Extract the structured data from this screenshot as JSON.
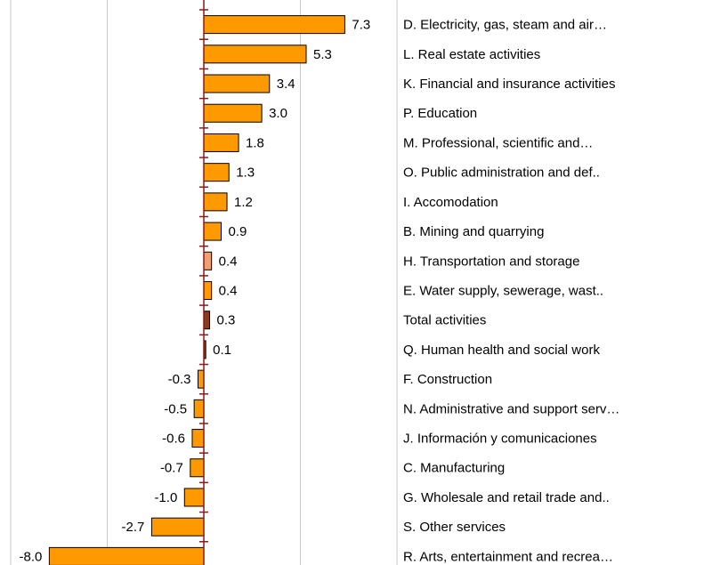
{
  "chart_data": {
    "type": "bar",
    "orientation": "horizontal",
    "categories": [
      "D. Electricity, gas, steam and air…",
      "L. Real estate activities",
      "K. Financial and insurance activities",
      "P. Education",
      "M. Professional, scientific and…",
      "O. Public administration and def..",
      "I. Accomodation",
      "B. Mining and quarrying",
      "H. Transportation and storage",
      "E. Water supply, sewerage, wast..",
      "Total activities",
      "Q. Human health and social work",
      "F. Construction",
      "N. Administrative and support serv…",
      "J. Información y comunicaciones",
      "C. Manufacturing",
      "G. Wholesale and retail trade and..",
      "S. Other services",
      "R. Arts, entertainment and recrea…"
    ],
    "values": [
      7.3,
      5.3,
      3.4,
      3.0,
      1.8,
      1.3,
      1.2,
      0.9,
      0.4,
      0.4,
      0.3,
      0.1,
      -0.3,
      -0.5,
      -0.6,
      -0.7,
      -1.0,
      -2.7,
      -8.0
    ],
    "value_labels": [
      "7.3",
      "5.3",
      "3.4",
      "3.0",
      "1.8",
      "1.3",
      "1.2",
      "0.9",
      "0.4",
      "0.4",
      "0.3",
      "0.1",
      "-0.3",
      "-0.5",
      "-0.6",
      "-0.7",
      "-1.0",
      "-2.7",
      "-8.0"
    ],
    "colors": [
      "#FF9900",
      "#FF9900",
      "#FF9900",
      "#FF9900",
      "#FF9900",
      "#FF9900",
      "#FF9900",
      "#FF9900",
      "#F0A070",
      "#FF9900",
      "#8B3A1A",
      "#8B3A1A",
      "#FF9900",
      "#FF9900",
      "#FF9900",
      "#FF9900",
      "#FF9900",
      "#FF9900",
      "#FF9900"
    ],
    "axis_color": "#8B1A1A",
    "xlim": [
      -10,
      10
    ],
    "xticks": [
      -10,
      -5,
      0,
      5,
      10
    ],
    "grid": true
  }
}
